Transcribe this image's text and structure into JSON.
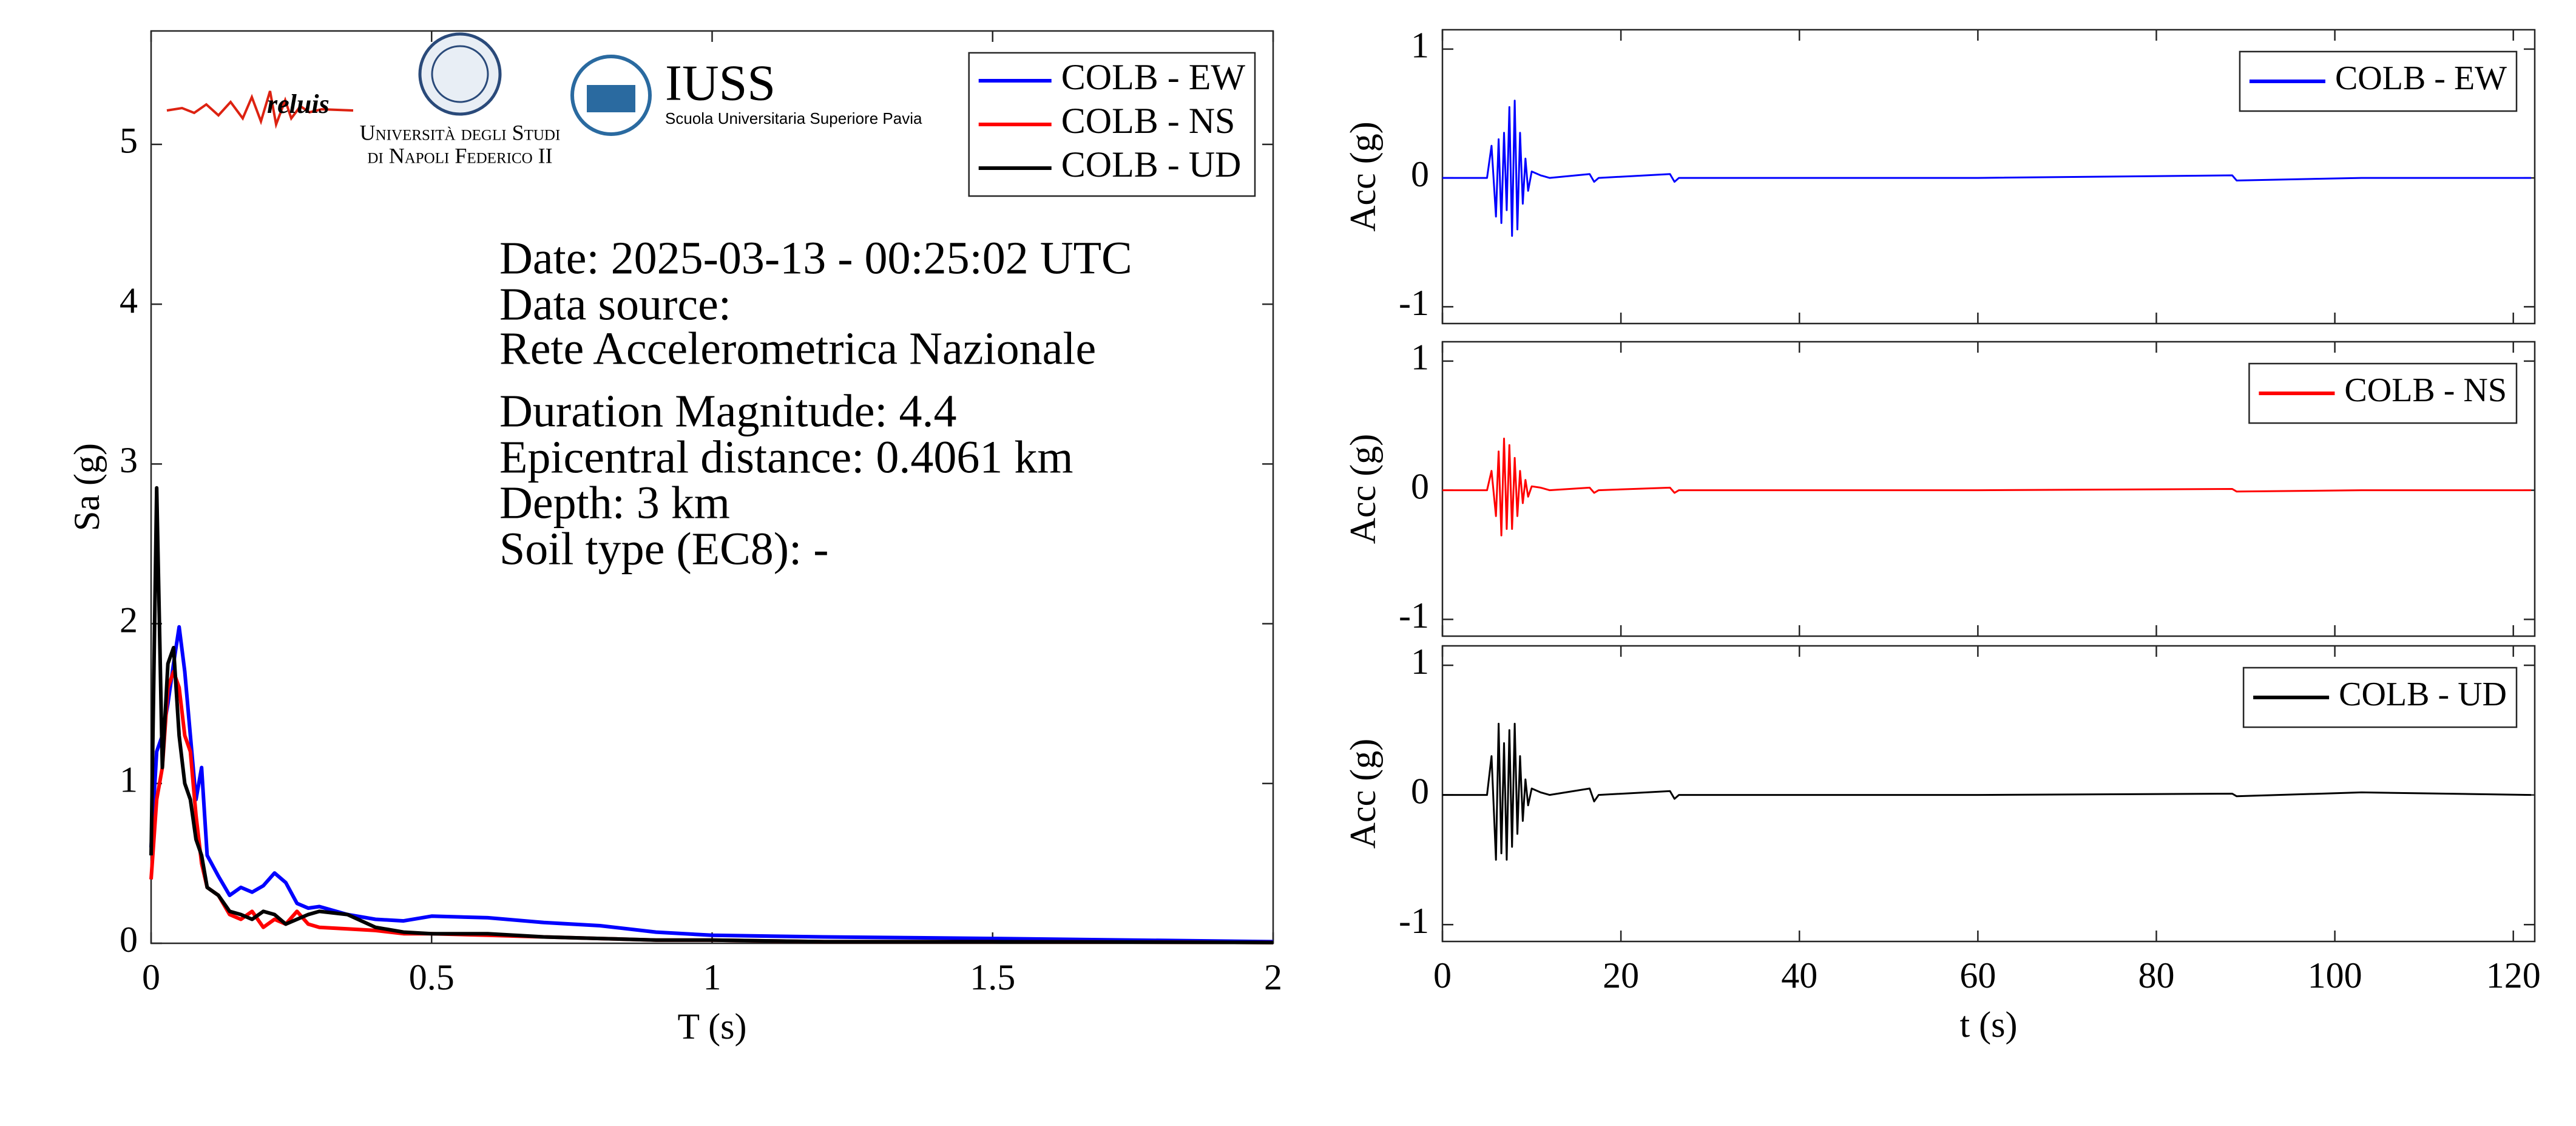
{
  "chart_data": [
    {
      "type": "line",
      "xlabel": "T (s)",
      "ylabel": "Sa (g)",
      "xlim": [
        0,
        2
      ],
      "ylim": [
        0,
        5.71
      ],
      "xticks": [
        0,
        0.5,
        1,
        1.5,
        2
      ],
      "yticks": [
        0,
        1,
        2,
        3,
        4,
        5
      ],
      "legend": "upper right",
      "annotations": [
        "Date: 2025-03-13 - 00:25:02 UTC",
        "Data source:",
        "Rete Accelerometrica Nazionale",
        "Duration Magnitude: 4.4",
        "Epicentral distance: 0.4061 km",
        "Depth: 3 km",
        "Soil type (EC8): -"
      ],
      "logos": [
        "reluis",
        "Università degli Studi",
        "di Napoli Federico II",
        "IUSS",
        "Scuola Universitaria Superiore Pavia"
      ],
      "x": [
        0,
        0.01,
        0.02,
        0.03,
        0.04,
        0.05,
        0.06,
        0.07,
        0.08,
        0.09,
        0.1,
        0.12,
        0.14,
        0.16,
        0.18,
        0.2,
        0.22,
        0.24,
        0.26,
        0.28,
        0.3,
        0.35,
        0.4,
        0.45,
        0.5,
        0.6,
        0.7,
        0.8,
        0.9,
        1.0,
        1.2,
        1.5,
        2.0
      ],
      "series": [
        {
          "name": "COLB - EW",
          "color": "#0000ff",
          "values": [
            0.6,
            1.2,
            1.3,
            1.5,
            1.75,
            1.98,
            1.7,
            1.3,
            0.9,
            1.1,
            0.55,
            0.42,
            0.3,
            0.35,
            0.32,
            0.36,
            0.44,
            0.38,
            0.25,
            0.22,
            0.23,
            0.18,
            0.15,
            0.14,
            0.17,
            0.16,
            0.13,
            0.11,
            0.07,
            0.05,
            0.04,
            0.03,
            0.01
          ]
        },
        {
          "name": "COLB - NS",
          "color": "#ff0000",
          "values": [
            0.4,
            0.9,
            1.1,
            1.6,
            1.7,
            1.6,
            1.3,
            1.2,
            0.8,
            0.5,
            0.35,
            0.3,
            0.18,
            0.15,
            0.2,
            0.1,
            0.15,
            0.12,
            0.2,
            0.12,
            0.1,
            0.09,
            0.08,
            0.06,
            0.06,
            0.05,
            0.04,
            0.03,
            0.02,
            0.02,
            0.01,
            0.01,
            0.005
          ]
        },
        {
          "name": "COLB - UD",
          "color": "#000000",
          "values": [
            0.55,
            2.85,
            1.1,
            1.75,
            1.85,
            1.3,
            1.0,
            0.9,
            0.65,
            0.55,
            0.35,
            0.3,
            0.2,
            0.18,
            0.15,
            0.2,
            0.18,
            0.12,
            0.15,
            0.18,
            0.2,
            0.18,
            0.1,
            0.07,
            0.06,
            0.06,
            0.04,
            0.03,
            0.02,
            0.02,
            0.01,
            0.01,
            0.005
          ]
        }
      ]
    },
    {
      "type": "line",
      "ylabel": "Acc (g)",
      "xlim": [
        0,
        122.4
      ],
      "ylim": [
        -1.13,
        1.15
      ],
      "xticks": [
        0,
        20,
        40,
        60,
        80,
        100,
        120
      ],
      "yticks": [
        -1,
        0,
        1
      ],
      "show_xtick_labels": false,
      "legend": "upper right",
      "x": [
        0,
        5,
        5.5,
        6,
        6.3,
        6.6,
        6.9,
        7.2,
        7.5,
        7.8,
        8.1,
        8.4,
        8.7,
        9.0,
        9.3,
        9.6,
        10,
        11,
        12,
        16.5,
        17,
        17.5,
        25.5,
        26,
        26.5,
        40,
        60,
        88.5,
        89,
        103,
        122
      ],
      "series": [
        {
          "name": "COLB - EW",
          "color": "#0000ff",
          "values": [
            0,
            0,
            0.25,
            -0.3,
            0.3,
            -0.35,
            0.35,
            -0.25,
            0.55,
            -0.45,
            0.6,
            -0.4,
            0.35,
            -0.2,
            0.15,
            -0.1,
            0.05,
            0.02,
            0,
            0.03,
            -0.03,
            0,
            0.03,
            -0.03,
            0,
            0,
            0,
            0.02,
            -0.02,
            0,
            0
          ]
        }
      ]
    },
    {
      "type": "line",
      "ylabel": "Acc (g)",
      "xlim": [
        0,
        122.4
      ],
      "ylim": [
        -1.13,
        1.15
      ],
      "xticks": [
        0,
        20,
        40,
        60,
        80,
        100,
        120
      ],
      "yticks": [
        -1,
        0,
        1
      ],
      "show_xtick_labels": false,
      "legend": "upper right",
      "x": [
        0,
        5,
        5.5,
        6,
        6.3,
        6.6,
        6.9,
        7.2,
        7.5,
        7.8,
        8.1,
        8.4,
        8.7,
        9.0,
        9.3,
        9.6,
        10,
        11,
        12,
        16.5,
        17,
        17.5,
        25.5,
        26,
        26.5,
        40,
        60,
        88.5,
        89,
        103,
        122
      ],
      "series": [
        {
          "name": "COLB - NS",
          "color": "#ff0000",
          "values": [
            0,
            0,
            0.15,
            -0.2,
            0.3,
            -0.35,
            0.4,
            -0.3,
            0.35,
            -0.3,
            0.25,
            -0.2,
            0.15,
            -0.1,
            0.08,
            -0.05,
            0.03,
            0.02,
            0,
            0.02,
            -0.02,
            0,
            0.02,
            -0.02,
            0,
            0,
            0,
            0.01,
            -0.01,
            0,
            0
          ]
        }
      ]
    },
    {
      "type": "line",
      "xlabel": "t (s)",
      "ylabel": "Acc (g)",
      "xlim": [
        0,
        122.4
      ],
      "ylim": [
        -1.13,
        1.15
      ],
      "xticks": [
        0,
        20,
        40,
        60,
        80,
        100,
        120
      ],
      "yticks": [
        -1,
        0,
        1
      ],
      "show_xtick_labels": true,
      "legend": "upper right",
      "x": [
        0,
        5,
        5.5,
        6,
        6.3,
        6.6,
        6.9,
        7.2,
        7.5,
        7.8,
        8.1,
        8.4,
        8.7,
        9.0,
        9.3,
        9.6,
        10,
        11,
        12,
        16.5,
        17,
        17.5,
        25.5,
        26,
        26.5,
        40,
        60,
        88.5,
        89,
        103,
        122
      ],
      "series": [
        {
          "name": "COLB - UD",
          "color": "#000000",
          "values": [
            0,
            0,
            0.3,
            -0.5,
            0.55,
            -0.45,
            0.4,
            -0.5,
            0.5,
            -0.4,
            0.55,
            -0.3,
            0.3,
            -0.2,
            0.12,
            -0.08,
            0.05,
            0.02,
            0,
            0.05,
            -0.05,
            0,
            0.03,
            -0.03,
            0,
            0,
            0,
            0.01,
            -0.01,
            0.02,
            0
          ]
        }
      ]
    }
  ]
}
